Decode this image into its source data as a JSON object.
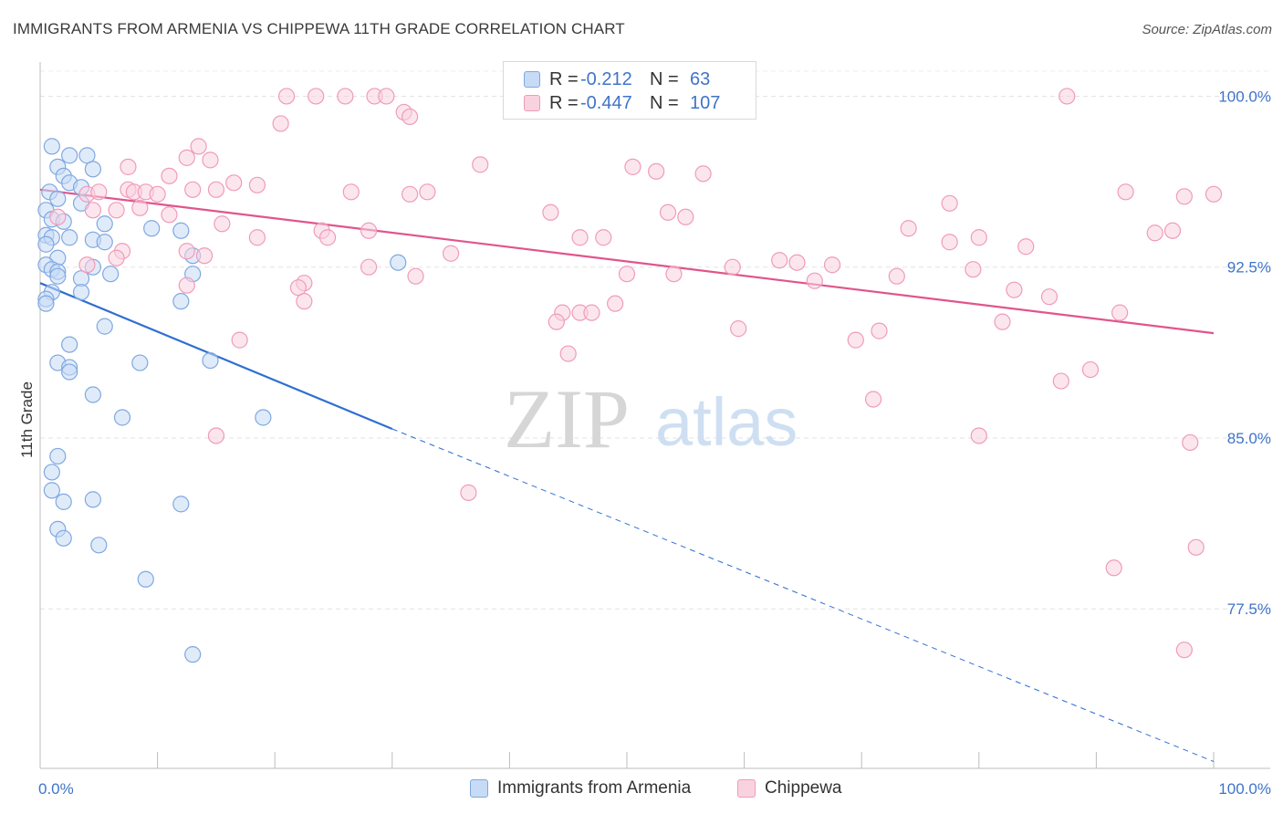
{
  "title": "IMMIGRANTS FROM ARMENIA VS CHIPPEWA 11TH GRADE CORRELATION CHART",
  "source": "Source: ZipAtlas.com",
  "legend": {
    "rows": [
      {
        "r_label": "R =",
        "r_value": "-0.212",
        "n_label": "N =",
        "n_value": "63"
      },
      {
        "r_label": "R =",
        "r_value": "-0.447",
        "n_label": "N =",
        "n_value": "107"
      }
    ]
  },
  "watermark": {
    "zip": "ZIP",
    "atlas": "atlas"
  },
  "chart_data": {
    "type": "scatter",
    "ylabel": "11th Grade",
    "xlim": [
      0,
      100
    ],
    "ylim": [
      70.5,
      101.5
    ],
    "y_ticks": [
      {
        "value": 100.0,
        "label": "100.0%"
      },
      {
        "value": 92.5,
        "label": "92.5%"
      },
      {
        "value": 85.0,
        "label": "85.0%"
      },
      {
        "value": 77.5,
        "label": "77.5%"
      }
    ],
    "x_ticks": [
      {
        "value": 0,
        "label": "0.0%"
      },
      {
        "value": 100,
        "label": "100.0%"
      }
    ],
    "grid": true,
    "legend_position": "top-center",
    "series": [
      {
        "name": "Immigrants from Armenia",
        "color": "#7fa8e0",
        "fill": "#c7dbf6",
        "trend": {
          "x0": 0,
          "y0": 91.8,
          "x1": 30,
          "y1": 85.4,
          "dash_to_x": 100,
          "dash_to_y": 70.8,
          "color": "#2f6fd1"
        },
        "points": [
          [
            1.0,
            97.8
          ],
          [
            4.0,
            97.4
          ],
          [
            2.5,
            97.4
          ],
          [
            1.5,
            96.9
          ],
          [
            4.5,
            96.8
          ],
          [
            2.0,
            96.5
          ],
          [
            2.5,
            96.2
          ],
          [
            3.5,
            96.0
          ],
          [
            0.8,
            95.8
          ],
          [
            1.5,
            95.5
          ],
          [
            3.5,
            95.3
          ],
          [
            0.5,
            95.0
          ],
          [
            1.0,
            94.6
          ],
          [
            2.0,
            94.5
          ],
          [
            5.5,
            94.4
          ],
          [
            9.5,
            94.2
          ],
          [
            12.0,
            94.1
          ],
          [
            0.5,
            93.9
          ],
          [
            1.0,
            93.8
          ],
          [
            2.5,
            93.8
          ],
          [
            4.5,
            93.7
          ],
          [
            5.5,
            93.6
          ],
          [
            0.5,
            93.5
          ],
          [
            13.0,
            93.0
          ],
          [
            1.5,
            92.9
          ],
          [
            0.5,
            92.6
          ],
          [
            4.5,
            92.5
          ],
          [
            1.0,
            92.4
          ],
          [
            1.5,
            92.3
          ],
          [
            6.0,
            92.2
          ],
          [
            1.5,
            92.1
          ],
          [
            3.5,
            92.0
          ],
          [
            30.5,
            92.7
          ],
          [
            13.0,
            92.2
          ],
          [
            1.0,
            91.4
          ],
          [
            3.5,
            91.4
          ],
          [
            0.5,
            91.1
          ],
          [
            0.5,
            90.9
          ],
          [
            12.0,
            91.0
          ],
          [
            5.5,
            89.9
          ],
          [
            2.5,
            89.1
          ],
          [
            1.5,
            88.3
          ],
          [
            8.5,
            88.3
          ],
          [
            2.5,
            88.1
          ],
          [
            2.5,
            87.9
          ],
          [
            14.5,
            88.4
          ],
          [
            4.5,
            86.9
          ],
          [
            7.0,
            85.9
          ],
          [
            19.0,
            85.9
          ],
          [
            1.5,
            84.2
          ],
          [
            1.0,
            83.5
          ],
          [
            1.0,
            82.7
          ],
          [
            4.5,
            82.3
          ],
          [
            2.0,
            82.2
          ],
          [
            12.0,
            82.1
          ],
          [
            1.5,
            81.0
          ],
          [
            2.0,
            80.6
          ],
          [
            5.0,
            80.3
          ],
          [
            9.0,
            78.8
          ],
          [
            13.0,
            75.5
          ]
        ]
      },
      {
        "name": "Chippewa",
        "color": "#f09bb9",
        "fill": "#f9d2e0",
        "trend": {
          "x0": 0,
          "y0": 95.9,
          "x1": 100,
          "y1": 89.6,
          "color": "#e0558a"
        },
        "points": [
          [
            21.0,
            100.0
          ],
          [
            23.5,
            100.0
          ],
          [
            26.0,
            100.0
          ],
          [
            28.5,
            100.0
          ],
          [
            29.5,
            100.0
          ],
          [
            87.5,
            100.0
          ],
          [
            31.0,
            99.3
          ],
          [
            31.5,
            99.1
          ],
          [
            20.5,
            98.8
          ],
          [
            13.5,
            97.8
          ],
          [
            12.5,
            97.3
          ],
          [
            14.5,
            97.2
          ],
          [
            7.5,
            96.9
          ],
          [
            37.5,
            97.0
          ],
          [
            50.5,
            96.9
          ],
          [
            52.5,
            96.7
          ],
          [
            56.5,
            96.6
          ],
          [
            11.0,
            96.5
          ],
          [
            16.5,
            96.2
          ],
          [
            18.5,
            96.1
          ],
          [
            7.5,
            95.9
          ],
          [
            4.0,
            95.7
          ],
          [
            5.0,
            95.8
          ],
          [
            8.0,
            95.8
          ],
          [
            9.0,
            95.8
          ],
          [
            10.0,
            95.7
          ],
          [
            13.0,
            95.9
          ],
          [
            15.0,
            95.9
          ],
          [
            26.5,
            95.8
          ],
          [
            31.5,
            95.7
          ],
          [
            33.0,
            95.8
          ],
          [
            92.5,
            95.8
          ],
          [
            97.5,
            95.6
          ],
          [
            100.0,
            95.7
          ],
          [
            77.5,
            95.3
          ],
          [
            6.5,
            95.0
          ],
          [
            4.5,
            95.0
          ],
          [
            1.5,
            94.7
          ],
          [
            11.0,
            94.8
          ],
          [
            8.5,
            95.1
          ],
          [
            43.5,
            94.9
          ],
          [
            53.5,
            94.9
          ],
          [
            55.0,
            94.7
          ],
          [
            15.5,
            94.4
          ],
          [
            74.0,
            94.2
          ],
          [
            95.0,
            94.0
          ],
          [
            96.5,
            94.1
          ],
          [
            18.5,
            93.8
          ],
          [
            24.0,
            94.1
          ],
          [
            24.5,
            93.8
          ],
          [
            28.0,
            94.1
          ],
          [
            46.0,
            93.8
          ],
          [
            48.0,
            93.8
          ],
          [
            80.0,
            93.8
          ],
          [
            77.5,
            93.6
          ],
          [
            84.0,
            93.4
          ],
          [
            7.0,
            93.2
          ],
          [
            12.5,
            93.2
          ],
          [
            14.0,
            93.0
          ],
          [
            35.0,
            93.1
          ],
          [
            63.0,
            92.8
          ],
          [
            64.5,
            92.7
          ],
          [
            59.0,
            92.5
          ],
          [
            67.5,
            92.6
          ],
          [
            79.5,
            92.4
          ],
          [
            4.0,
            92.6
          ],
          [
            6.5,
            92.9
          ],
          [
            28.0,
            92.5
          ],
          [
            32.0,
            92.1
          ],
          [
            50.0,
            92.2
          ],
          [
            54.0,
            92.2
          ],
          [
            73.0,
            92.1
          ],
          [
            66.0,
            91.9
          ],
          [
            22.5,
            91.8
          ],
          [
            22.0,
            91.6
          ],
          [
            12.5,
            91.7
          ],
          [
            83.0,
            91.5
          ],
          [
            86.0,
            91.2
          ],
          [
            49.0,
            90.9
          ],
          [
            22.5,
            91.0
          ],
          [
            44.5,
            90.5
          ],
          [
            46.0,
            90.5
          ],
          [
            47.0,
            90.5
          ],
          [
            44.0,
            90.1
          ],
          [
            92.0,
            90.5
          ],
          [
            82.0,
            90.1
          ],
          [
            59.5,
            89.8
          ],
          [
            69.5,
            89.3
          ],
          [
            71.5,
            89.7
          ],
          [
            17.0,
            89.3
          ],
          [
            45.0,
            88.7
          ],
          [
            89.5,
            88.0
          ],
          [
            87.0,
            87.5
          ],
          [
            71.0,
            86.7
          ],
          [
            15.0,
            85.1
          ],
          [
            80.0,
            85.1
          ],
          [
            98.0,
            84.8
          ],
          [
            36.5,
            82.6
          ],
          [
            98.5,
            80.2
          ],
          [
            91.5,
            79.3
          ],
          [
            97.5,
            75.7
          ]
        ]
      }
    ]
  }
}
